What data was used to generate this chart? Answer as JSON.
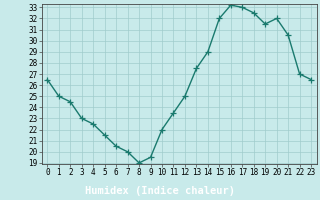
{
  "x": [
    0,
    1,
    2,
    3,
    4,
    5,
    6,
    7,
    8,
    9,
    10,
    11,
    12,
    13,
    14,
    15,
    16,
    17,
    18,
    19,
    20,
    21,
    22,
    23
  ],
  "y": [
    26.5,
    25.0,
    24.5,
    23.0,
    22.5,
    21.5,
    20.5,
    20.0,
    19.0,
    19.5,
    22.0,
    23.5,
    25.0,
    27.5,
    29.0,
    32.0,
    33.2,
    33.0,
    32.5,
    31.5,
    32.0,
    30.5,
    27.0,
    26.5
  ],
  "line_color": "#1a7a6e",
  "bg_color": "#c8eaea",
  "plot_bg_color": "#c8eaea",
  "grid_color": "#a0cccc",
  "xlabel": "Humidex (Indice chaleur)",
  "xlabel_bar_color": "#2a5a5a",
  "xlabel_text_color": "#ffffff",
  "ylim": [
    19,
    33
  ],
  "xlim": [
    -0.5,
    23.5
  ],
  "yticks": [
    19,
    20,
    21,
    22,
    23,
    24,
    25,
    26,
    27,
    28,
    29,
    30,
    31,
    32,
    33
  ],
  "xticks": [
    0,
    1,
    2,
    3,
    4,
    5,
    6,
    7,
    8,
    9,
    10,
    11,
    12,
    13,
    14,
    15,
    16,
    17,
    18,
    19,
    20,
    21,
    22,
    23
  ],
  "marker": "+",
  "linewidth": 1.0,
  "markersize": 4,
  "tick_fontsize": 5.5,
  "xlabel_fontsize": 7.5
}
